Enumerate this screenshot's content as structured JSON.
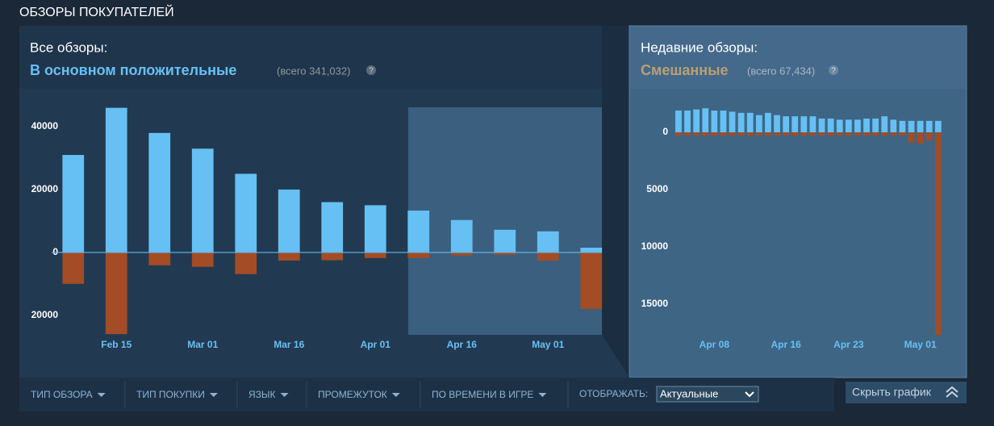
{
  "header": {
    "title": "ОБЗОРЫ ПОКУПАТЕЛЕЙ"
  },
  "summary": {
    "all": {
      "label": "Все обзоры:",
      "rating": "В основном положительные",
      "total": "(всего 341,032)",
      "help": "?"
    },
    "recent": {
      "label": "Недавние обзоры:",
      "rating": "Смешанные",
      "total": "(всего 67,434)",
      "help": "?"
    }
  },
  "chart_data": [
    {
      "type": "bar",
      "categories": [
        null,
        "Feb 15",
        null,
        "Mar 01",
        null,
        "Mar 16",
        null,
        "Apr 01",
        null,
        "Apr 16",
        null,
        "May 01",
        null
      ],
      "series": [
        {
          "color": "#66c0f4",
          "values": [
            31000,
            46000,
            38000,
            33000,
            25000,
            20000,
            16000,
            15000,
            13300,
            10300,
            7200,
            6700,
            1500
          ]
        },
        {
          "color": "#a34c25",
          "values": [
            -10000,
            -26000,
            -4100,
            -4600,
            -6900,
            -2600,
            -2500,
            -1800,
            -1800,
            -1000,
            -800,
            -2600,
            -18000
          ]
        }
      ],
      "ylim": [
        -27000,
        49500
      ],
      "yticks": [
        {
          "value": -20000,
          "label": "20000"
        },
        0,
        20000,
        40000
      ]
    },
    {
      "type": "bar",
      "categories": [
        null,
        null,
        null,
        null,
        "Apr 08",
        null,
        null,
        null,
        null,
        null,
        null,
        null,
        "Apr 16",
        null,
        null,
        null,
        null,
        null,
        null,
        "Apr 23",
        null,
        null,
        null,
        null,
        null,
        null,
        null,
        "May 01",
        null,
        null
      ],
      "series": [
        {
          "color": "#66c0f4",
          "values": [
            1900,
            1900,
            2000,
            2100,
            1900,
            1900,
            1800,
            1700,
            1700,
            1500,
            1700,
            1500,
            1400,
            1400,
            1400,
            1400,
            1200,
            1200,
            1100,
            1100,
            1100,
            1200,
            1200,
            1400,
            1100,
            1000,
            1000,
            1000,
            1000,
            1000
          ]
        },
        {
          "color": "#a34c25",
          "values": [
            -300,
            -300,
            -300,
            -300,
            -300,
            -300,
            -300,
            -300,
            -300,
            -300,
            -300,
            -300,
            -300,
            -300,
            -300,
            -300,
            -300,
            -300,
            -300,
            -300,
            -300,
            -300,
            -300,
            -300,
            -300,
            -300,
            -900,
            -1000,
            -700,
            -17700
          ]
        }
      ],
      "ylim": [
        -17900,
        3100
      ],
      "yticks": [
        {
          "value": -15000,
          "label": "15000"
        },
        {
          "value": -10000,
          "label": "10000"
        },
        {
          "value": -5000,
          "label": "5000"
        },
        0
      ]
    }
  ],
  "filters": {
    "items": [
      "ТИП ОБЗОРА",
      "ТИП ПОКУПКИ",
      "ЯЗЫК",
      "ПРОМЕЖУТОК",
      "ПО ВРЕМЕНИ В ИГРЕ"
    ],
    "display_label": "ОТОБРАЖАТЬ:",
    "display_value": "Актуальные",
    "hide_button": "Скрыть график"
  }
}
